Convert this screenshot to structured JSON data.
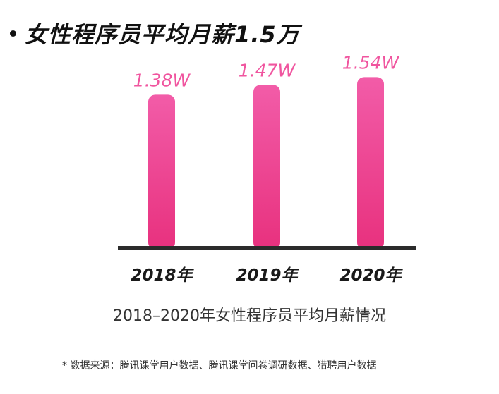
{
  "headline": "女性程序员平均月薪1.5万",
  "chart_data": {
    "type": "bar",
    "categories": [
      "2018年",
      "2019年",
      "2020年"
    ],
    "values": [
      1.38,
      1.47,
      1.54
    ],
    "data_labels": [
      "1.38W",
      "1.47W",
      "1.54W"
    ],
    "title": "2018–2020年女性程序员平均月薪情况",
    "xlabel": "",
    "ylabel": "",
    "ylim": [
      0,
      1.6
    ],
    "grid": false,
    "legend": "none",
    "bar_color_top": "#f25ca8",
    "bar_color_bottom": "#e8317e",
    "label_color": "#f0559f",
    "axis_color": "#2b2b2b"
  },
  "source_note": "* 数据来源：腾讯课堂用户数据、腾讯课堂问卷调研数据、猎聘用户数据"
}
